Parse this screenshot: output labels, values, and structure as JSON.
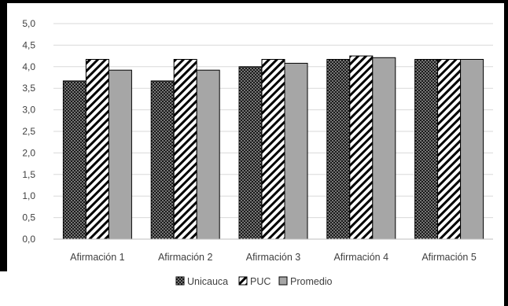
{
  "chart_data": {
    "type": "bar",
    "title": "",
    "xlabel": "",
    "ylabel": "",
    "categories": [
      "Afirmación 1",
      "Afirmación 2",
      "Afirmación 3",
      "Afirmación 4",
      "Afirmación 5"
    ],
    "series": [
      {
        "name": "Unicauca",
        "values": [
          3.67,
          3.67,
          4.0,
          4.17,
          4.17
        ],
        "pattern": "dots",
        "color": "#1a1a1a"
      },
      {
        "name": "PUC",
        "values": [
          4.17,
          4.17,
          4.17,
          4.25,
          4.17
        ],
        "pattern": "diagonal-stripes",
        "color": "#000000"
      },
      {
        "name": "Promedio",
        "values": [
          3.92,
          3.92,
          4.08,
          4.21,
          4.17
        ],
        "pattern": "solid",
        "color": "#a6a6a6"
      }
    ],
    "ylim": [
      0,
      5
    ],
    "yticks": [
      "0,0",
      "0,5",
      "1,0",
      "1,5",
      "2,0",
      "2,5",
      "3,0",
      "3,5",
      "4,0",
      "4,5",
      "5,0"
    ],
    "grid": true,
    "legend_position": "bottom"
  }
}
